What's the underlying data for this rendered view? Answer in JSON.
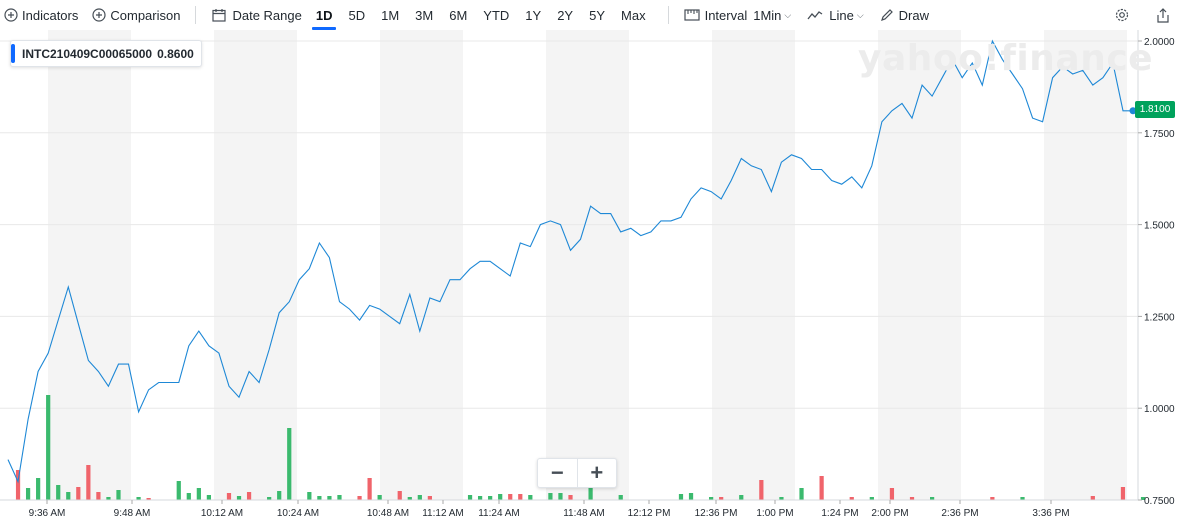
{
  "toolbar": {
    "indicators_label": "Indicators",
    "comparison_label": "Comparison",
    "date_range_label": "Date Range",
    "ranges": [
      "1D",
      "5D",
      "1M",
      "3M",
      "6M",
      "YTD",
      "1Y",
      "2Y",
      "5Y",
      "Max"
    ],
    "active_range": "1D",
    "interval_label": "Interval",
    "interval_value": "1Min",
    "charttype_label": "Line",
    "draw_label": "Draw"
  },
  "legend": {
    "symbol": "INTC210409C00065000",
    "value": "0.8600"
  },
  "watermark": "yahoo!finance",
  "current_price": "1.8100",
  "zoom": {
    "minus": "−",
    "plus": "+"
  },
  "colors": {
    "line": "#1e88d6",
    "up": "#3bba6e",
    "down": "#f0646b",
    "band": "#f4f4f4",
    "grid": "#e8e8e8",
    "price_tag": "#00a25c"
  },
  "chart_data": {
    "type": "line",
    "title": "",
    "xlabel": "",
    "ylabel": "",
    "ylim": [
      0.75,
      2.0
    ],
    "y_ticks": [
      "2.0000",
      "1.7500",
      "1.5000",
      "1.2500",
      "1.0000",
      "0.7500"
    ],
    "x_ticks": [
      "9:36 AM",
      "9:48 AM",
      "10:12 AM",
      "10:24 AM",
      "10:48 AM",
      "11:12 AM",
      "11:24 AM",
      "11:48 AM",
      "12:12 PM",
      "12:36 PM",
      "1:00 PM",
      "1:24 PM",
      "2:00 PM",
      "2:36 PM",
      "3:36 PM"
    ],
    "legend_position": "top-left",
    "series": [
      {
        "name": "INTC210409C00065000",
        "values": [
          0.86,
          0.8,
          0.97,
          1.1,
          1.15,
          1.24,
          1.33,
          1.23,
          1.13,
          1.1,
          1.06,
          1.12,
          1.12,
          0.99,
          1.05,
          1.07,
          1.07,
          1.07,
          1.17,
          1.21,
          1.17,
          1.15,
          1.06,
          1.03,
          1.1,
          1.07,
          1.16,
          1.26,
          1.29,
          1.35,
          1.38,
          1.45,
          1.41,
          1.29,
          1.27,
          1.24,
          1.28,
          1.27,
          1.25,
          1.23,
          1.31,
          1.21,
          1.3,
          1.29,
          1.35,
          1.35,
          1.38,
          1.4,
          1.4,
          1.38,
          1.36,
          1.45,
          1.44,
          1.5,
          1.51,
          1.5,
          1.43,
          1.46,
          1.55,
          1.53,
          1.53,
          1.48,
          1.49,
          1.47,
          1.48,
          1.51,
          1.51,
          1.52,
          1.57,
          1.6,
          1.59,
          1.57,
          1.62,
          1.68,
          1.66,
          1.65,
          1.59,
          1.67,
          1.69,
          1.68,
          1.65,
          1.65,
          1.62,
          1.61,
          1.63,
          1.6,
          1.66,
          1.78,
          1.81,
          1.83,
          1.79,
          1.88,
          1.85,
          1.9,
          1.95,
          1.9,
          1.94,
          1.88,
          2.0,
          1.95,
          1.91,
          1.87,
          1.79,
          1.78,
          1.9,
          1.93,
          1.91,
          1.92,
          1.88,
          1.9,
          1.94,
          1.81,
          1.81
        ]
      }
    ],
    "volume": [
      {
        "i": 1,
        "v": 30,
        "d": "down"
      },
      {
        "i": 2,
        "v": 12,
        "d": "up"
      },
      {
        "i": 3,
        "v": 22,
        "d": "up"
      },
      {
        "i": 4,
        "v": 105,
        "d": "up"
      },
      {
        "i": 5,
        "v": 15,
        "d": "up"
      },
      {
        "i": 6,
        "v": 8,
        "d": "up"
      },
      {
        "i": 7,
        "v": 13,
        "d": "down"
      },
      {
        "i": 8,
        "v": 35,
        "d": "down"
      },
      {
        "i": 9,
        "v": 8,
        "d": "down"
      },
      {
        "i": 10,
        "v": 3,
        "d": "up"
      },
      {
        "i": 11,
        "v": 10,
        "d": "up"
      },
      {
        "i": 13,
        "v": 3,
        "d": "up"
      },
      {
        "i": 14,
        "v": 2,
        "d": "down"
      },
      {
        "i": 17,
        "v": 19,
        "d": "up"
      },
      {
        "i": 18,
        "v": 7,
        "d": "up"
      },
      {
        "i": 19,
        "v": 12,
        "d": "up"
      },
      {
        "i": 20,
        "v": 5,
        "d": "up"
      },
      {
        "i": 22,
        "v": 7,
        "d": "down"
      },
      {
        "i": 23,
        "v": 4,
        "d": "up"
      },
      {
        "i": 24,
        "v": 8,
        "d": "down"
      },
      {
        "i": 26,
        "v": 3,
        "d": "up"
      },
      {
        "i": 27,
        "v": 9,
        "d": "up"
      },
      {
        "i": 28,
        "v": 72,
        "d": "up"
      },
      {
        "i": 30,
        "v": 8,
        "d": "up"
      },
      {
        "i": 31,
        "v": 4,
        "d": "up"
      },
      {
        "i": 32,
        "v": 4,
        "d": "up"
      },
      {
        "i": 33,
        "v": 5,
        "d": "up"
      },
      {
        "i": 35,
        "v": 4,
        "d": "down"
      },
      {
        "i": 36,
        "v": 22,
        "d": "down"
      },
      {
        "i": 37,
        "v": 5,
        "d": "up"
      },
      {
        "i": 39,
        "v": 9,
        "d": "down"
      },
      {
        "i": 40,
        "v": 3,
        "d": "up"
      },
      {
        "i": 41,
        "v": 5,
        "d": "up"
      },
      {
        "i": 42,
        "v": 4,
        "d": "down"
      },
      {
        "i": 46,
        "v": 5,
        "d": "up"
      },
      {
        "i": 47,
        "v": 4,
        "d": "up"
      },
      {
        "i": 48,
        "v": 4,
        "d": "up"
      },
      {
        "i": 49,
        "v": 6,
        "d": "up"
      },
      {
        "i": 50,
        "v": 6,
        "d": "down"
      },
      {
        "i": 51,
        "v": 6,
        "d": "down"
      },
      {
        "i": 52,
        "v": 5,
        "d": "up"
      },
      {
        "i": 54,
        "v": 7,
        "d": "up"
      },
      {
        "i": 55,
        "v": 7,
        "d": "up"
      },
      {
        "i": 56,
        "v": 5,
        "d": "down"
      },
      {
        "i": 58,
        "v": 21,
        "d": "up"
      },
      {
        "i": 61,
        "v": 5,
        "d": "up"
      },
      {
        "i": 67,
        "v": 6,
        "d": "up"
      },
      {
        "i": 68,
        "v": 7,
        "d": "up"
      },
      {
        "i": 70,
        "v": 3,
        "d": "up"
      },
      {
        "i": 71,
        "v": 3,
        "d": "down"
      },
      {
        "i": 73,
        "v": 5,
        "d": "up"
      },
      {
        "i": 75,
        "v": 20,
        "d": "down"
      },
      {
        "i": 77,
        "v": 3,
        "d": "up"
      },
      {
        "i": 79,
        "v": 12,
        "d": "up"
      },
      {
        "i": 81,
        "v": 24,
        "d": "down"
      },
      {
        "i": 84,
        "v": 3,
        "d": "down"
      },
      {
        "i": 86,
        "v": 3,
        "d": "up"
      },
      {
        "i": 88,
        "v": 12,
        "d": "down"
      },
      {
        "i": 90,
        "v": 3,
        "d": "down"
      },
      {
        "i": 92,
        "v": 3,
        "d": "up"
      },
      {
        "i": 98,
        "v": 3,
        "d": "down"
      },
      {
        "i": 101,
        "v": 3,
        "d": "up"
      },
      {
        "i": 108,
        "v": 4,
        "d": "down"
      },
      {
        "i": 111,
        "v": 13,
        "d": "down"
      },
      {
        "i": 113,
        "v": 3,
        "d": "up"
      }
    ]
  }
}
